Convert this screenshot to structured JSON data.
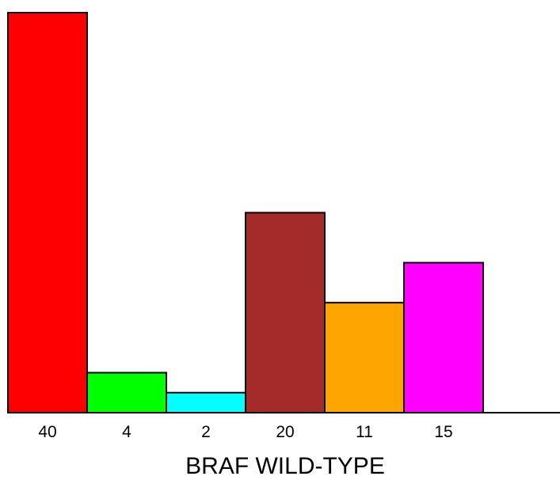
{
  "chart_data": {
    "type": "bar",
    "categories": [
      "40",
      "4",
      "2",
      "20",
      "11",
      "15"
    ],
    "values": [
      40,
      4,
      2,
      20,
      11,
      15
    ],
    "colors": [
      "#ff0000",
      "#00ff00",
      "#00ffff",
      "#a52a2a",
      "#ffa500",
      "#ff00ff"
    ],
    "xlabel": "BRAF WILD-TYPE",
    "ylabel": "",
    "title": "",
    "ylim": [
      0,
      40
    ],
    "grid": false
  }
}
